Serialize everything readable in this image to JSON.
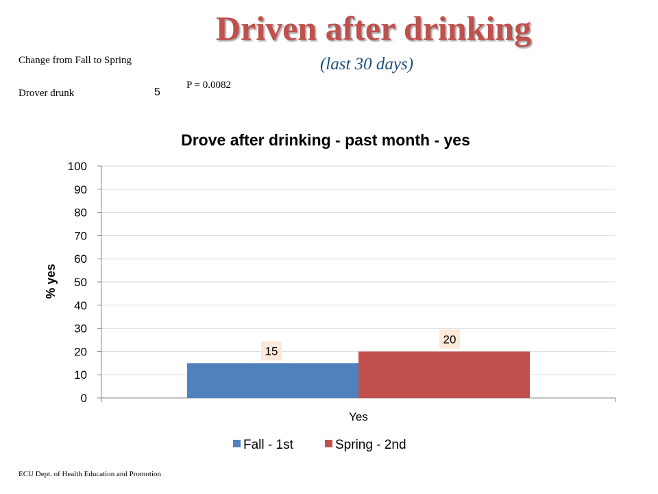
{
  "slide": {
    "title": "Driven after drinking",
    "subtitle": "(last 30 days)",
    "change_label": "Change  from Fall to Spring",
    "drover_label": "Drover drunk",
    "drover_value": "5",
    "p_value": "P = 0.0082",
    "footer": "ECU Dept. of Health Education and Promotion"
  },
  "colors": {
    "title": "#c0504d",
    "subtitle": "#1f4e79",
    "series_fall": "#4f81bd",
    "series_spring": "#c0504d",
    "data_label_bg": "#fde9d9"
  },
  "chart_data": {
    "type": "bar",
    "title": "Drove after drinking - past month - yes",
    "xlabel": "",
    "ylabel": "% yes",
    "categories": [
      "Yes"
    ],
    "series": [
      {
        "name": "Fall - 1st",
        "values": [
          15
        ]
      },
      {
        "name": "Spring - 2nd",
        "values": [
          20
        ]
      }
    ],
    "ylim": [
      0,
      100
    ],
    "yticks": [
      "0",
      "10",
      "20",
      "30",
      "40",
      "50",
      "60",
      "70",
      "80",
      "90",
      "100"
    ],
    "data_labels": [
      "15",
      "20"
    ],
    "grid": true,
    "legend": "bottom"
  }
}
